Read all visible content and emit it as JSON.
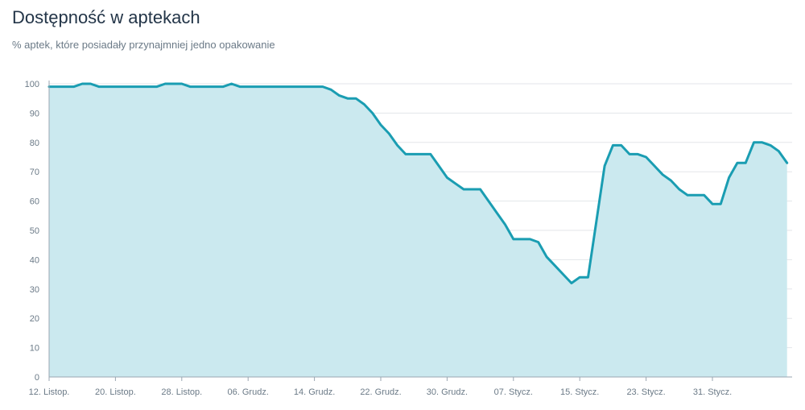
{
  "title": "Dostępność w aptekach",
  "subtitle": "% aptek, które posiadały przynajmniej jedno opakowanie",
  "colors": {
    "line": "#1a9db2",
    "area": "#cbe9ef",
    "grid": "#e3e6e9",
    "axis": "#9aa6b1"
  },
  "chart_data": {
    "type": "area",
    "ylim": [
      0,
      100
    ],
    "yticks": [
      0,
      10,
      20,
      30,
      40,
      50,
      60,
      70,
      80,
      90,
      100
    ],
    "xticks": [
      {
        "day": 0,
        "label": "12. Listop."
      },
      {
        "day": 8,
        "label": "20. Listop."
      },
      {
        "day": 16,
        "label": "28. Listop."
      },
      {
        "day": 24,
        "label": "06. Grudz."
      },
      {
        "day": 32,
        "label": "14. Grudz."
      },
      {
        "day": 40,
        "label": "22. Grudz."
      },
      {
        "day": 48,
        "label": "30. Grudz."
      },
      {
        "day": 56,
        "label": "07. Stycz."
      },
      {
        "day": 64,
        "label": "15. Stycz."
      },
      {
        "day": 72,
        "label": "23. Stycz."
      },
      {
        "day": 80,
        "label": "31. Stycz."
      }
    ],
    "series": [
      {
        "values": [
          99,
          99,
          99,
          99,
          100,
          100,
          99,
          99,
          99,
          99,
          99,
          99,
          99,
          99,
          100,
          100,
          100,
          99,
          99,
          99,
          99,
          99,
          100,
          99,
          99,
          99,
          99,
          99,
          99,
          99,
          99,
          99,
          99,
          99,
          98,
          96,
          95,
          95,
          93,
          90,
          86,
          83,
          79,
          76,
          76,
          76,
          76,
          72,
          68,
          66,
          64,
          64,
          64,
          60,
          56,
          52,
          47,
          47,
          47,
          46,
          41,
          38,
          35,
          32,
          34,
          34,
          53,
          72,
          79,
          79,
          76,
          76,
          75,
          72,
          69,
          67,
          64,
          62,
          62,
          62,
          59,
          59,
          68,
          73,
          73,
          80,
          80,
          79,
          77,
          73
        ]
      }
    ]
  }
}
